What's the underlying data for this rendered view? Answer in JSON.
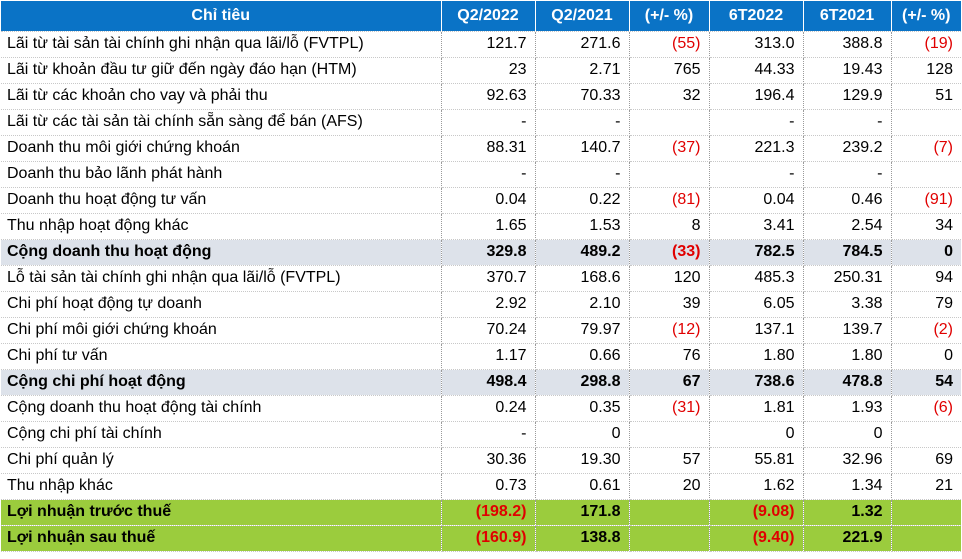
{
  "table": {
    "headers": [
      "Chỉ tiêu",
      "Q2/2022",
      "Q2/2021",
      "(+/- %)",
      "6T2022",
      "6T2021",
      "(+/- %)"
    ],
    "rows": [
      {
        "style": "normal",
        "cells": [
          "Lãi từ tài sản tài chính ghi nhận qua lãi/lỗ (FVTPL)",
          "121.7",
          "271.6",
          "(55)",
          "313.0",
          "388.8",
          "(19)"
        ]
      },
      {
        "style": "normal",
        "cells": [
          "Lãi từ khoản đầu tư giữ đến ngày đáo hạn (HTM)",
          "23",
          "2.71",
          "765",
          "44.33",
          "19.43",
          "128"
        ]
      },
      {
        "style": "normal",
        "cells": [
          "Lãi từ các khoản cho vay và phải thu",
          "92.63",
          "70.33",
          "32",
          "196.4",
          "129.9",
          "51"
        ]
      },
      {
        "style": "normal",
        "cells": [
          "Lãi từ các tài sản tài chính sẵn sàng để bán (AFS)",
          "-",
          "-",
          "",
          "-",
          "-",
          ""
        ]
      },
      {
        "style": "normal",
        "cells": [
          "Doanh thu môi giới chứng khoán",
          "88.31",
          "140.7",
          "(37)",
          "221.3",
          "239.2",
          "(7)"
        ]
      },
      {
        "style": "normal",
        "cells": [
          "Doanh thu bảo lãnh phát hành",
          "-",
          "-",
          "",
          "-",
          "-",
          ""
        ]
      },
      {
        "style": "normal",
        "cells": [
          "Doanh thu hoạt động tư vấn",
          "0.04",
          "0.22",
          "(81)",
          "0.04",
          "0.46",
          "(91)"
        ]
      },
      {
        "style": "normal",
        "cells": [
          "Thu nhập hoạt động khác",
          "1.65",
          "1.53",
          "8",
          "3.41",
          "2.54",
          "34"
        ]
      },
      {
        "style": "total",
        "cells": [
          "Cộng doanh thu hoạt động",
          "329.8",
          "489.2",
          "(33)",
          "782.5",
          "784.5",
          "0"
        ]
      },
      {
        "style": "normal",
        "cells": [
          "Lỗ tài sản tài chính ghi nhận qua lãi/lỗ (FVTPL)",
          "370.7",
          "168.6",
          "120",
          "485.3",
          "250.31",
          "94"
        ]
      },
      {
        "style": "normal",
        "cells": [
          "Chi phí hoạt động tự doanh",
          "2.92",
          "2.10",
          "39",
          "6.05",
          "3.38",
          "79"
        ]
      },
      {
        "style": "normal",
        "cells": [
          "Chi phí môi giới chứng khoán",
          "70.24",
          "79.97",
          "(12)",
          "137.1",
          "139.7",
          "(2)"
        ]
      },
      {
        "style": "normal",
        "cells": [
          "Chi phí tư vấn",
          "1.17",
          "0.66",
          "76",
          "1.80",
          "1.80",
          "0"
        ]
      },
      {
        "style": "total",
        "cells": [
          "Cộng chi phí hoạt động",
          "498.4",
          "298.8",
          "67",
          "738.6",
          "478.8",
          "54"
        ]
      },
      {
        "style": "normal",
        "cells": [
          "Cộng doanh thu hoạt động tài chính",
          "0.24",
          "0.35",
          "(31)",
          "1.81",
          "1.93",
          "(6)"
        ]
      },
      {
        "style": "normal",
        "cells": [
          "Cộng chi phí tài chính",
          "-",
          "0",
          "",
          "0",
          "0",
          ""
        ]
      },
      {
        "style": "normal",
        "cells": [
          "Chi phí quản lý",
          "30.36",
          "19.30",
          "57",
          "55.81",
          "32.96",
          "69"
        ]
      },
      {
        "style": "normal",
        "cells": [
          "Thu nhập khác",
          "0.73",
          "0.61",
          "20",
          "1.62",
          "1.34",
          "21"
        ]
      },
      {
        "style": "result",
        "cells": [
          "Lợi nhuận trước thuế",
          "(198.2)",
          "171.8",
          "",
          "(9.08)",
          "1.32",
          ""
        ]
      },
      {
        "style": "result",
        "cells": [
          "Lợi nhuận sau thuế",
          "(160.9)",
          "138.8",
          "",
          "(9.40)",
          "221.9",
          ""
        ]
      }
    ]
  },
  "colors": {
    "header_bg": "#0a73c6",
    "header_text": "#ffffff",
    "total_row_bg": "#dde2ea",
    "result_row_bg": "#9bcc3d",
    "negative_text": "#e00000"
  }
}
